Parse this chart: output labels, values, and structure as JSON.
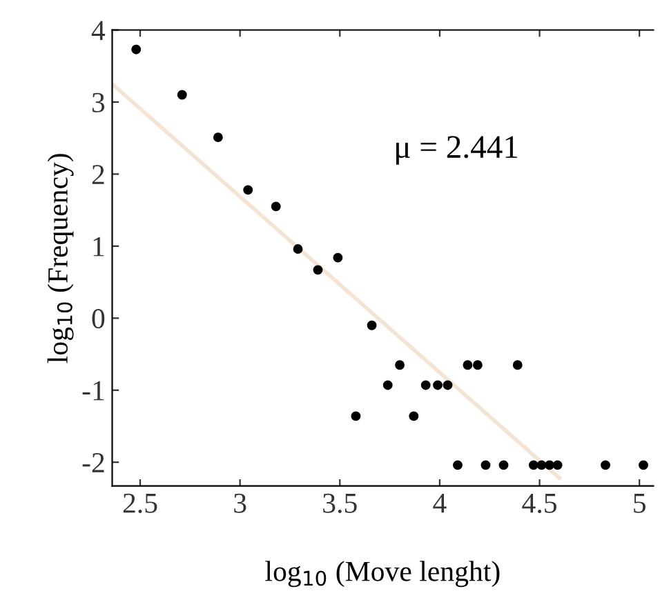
{
  "chart_data": {
    "type": "scatter",
    "xlabel": "log$_{10}$ (Move lenght)",
    "ylabel": "log$_{10}$ (Frequency)",
    "annotations": [
      "μ = 2.441"
    ],
    "xlim": [
      2.36,
      5.07
    ],
    "ylim": [
      -2.33,
      4
    ],
    "xticks": [
      2.5,
      3,
      3.5,
      4,
      4.5,
      5
    ],
    "yticks": [
      -2,
      -1,
      0,
      1,
      2,
      3,
      4
    ],
    "grid": false,
    "legend": false,
    "series": [
      {
        "marker": "circle",
        "color": "#000000",
        "x": [
          2.48,
          2.71,
          2.89,
          3.04,
          3.18,
          3.29,
          3.39,
          3.49,
          3.58,
          3.66,
          3.74,
          3.8,
          3.87,
          3.93,
          3.99,
          4.04,
          4.09,
          4.14,
          4.19,
          4.23,
          4.32,
          4.39,
          4.47,
          4.51,
          4.55,
          4.59,
          4.83,
          5.02
        ],
        "values": [
          3.73,
          3.1,
          2.51,
          1.78,
          1.55,
          0.96,
          0.67,
          0.84,
          -1.36,
          -0.1,
          -0.93,
          -0.65,
          -1.36,
          -0.93,
          -0.93,
          -0.93,
          -2.04,
          -0.65,
          -0.65,
          -2.04,
          -2.04,
          -0.65,
          -2.04,
          -2.04,
          -2.04,
          -2.04,
          -2.04,
          -2.04
        ]
      },
      {
        "type": "line",
        "marker": "none",
        "color": "#f3e4d4",
        "x": [
          2.36,
          4.6
        ],
        "values": [
          3.25,
          -2.22
        ]
      }
    ]
  }
}
